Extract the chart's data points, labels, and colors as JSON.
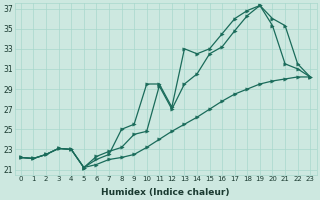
{
  "xlabel": "Humidex (Indice chaleur)",
  "bg_color": "#cde8e0",
  "line_color": "#1a6b5a",
  "xlim": [
    -0.5,
    23.5
  ],
  "ylim": [
    20.5,
    37.5
  ],
  "xticks": [
    0,
    1,
    2,
    3,
    4,
    5,
    6,
    7,
    8,
    9,
    10,
    11,
    12,
    13,
    14,
    15,
    16,
    17,
    18,
    19,
    20,
    21,
    22,
    23
  ],
  "yticks": [
    21,
    23,
    25,
    27,
    29,
    31,
    33,
    35,
    37
  ],
  "line1_x": [
    0,
    1,
    2,
    3,
    4,
    5,
    6,
    7,
    8,
    9,
    10,
    11,
    12,
    13,
    14,
    15,
    16,
    17,
    18,
    19,
    20,
    21,
    22,
    23
  ],
  "line1_y": [
    22.2,
    22.1,
    22.5,
    23.1,
    23.0,
    21.2,
    22.0,
    22.5,
    25.0,
    25.5,
    29.5,
    29.5,
    27.2,
    33.0,
    32.5,
    33.0,
    34.5,
    36.0,
    36.8,
    37.3,
    35.3,
    31.5,
    31.0,
    30.2
  ],
  "line2_x": [
    0,
    1,
    2,
    3,
    4,
    5,
    6,
    7,
    8,
    9,
    10,
    11,
    12,
    13,
    14,
    15,
    16,
    17,
    18,
    19,
    20,
    21,
    22,
    23
  ],
  "line2_y": [
    22.2,
    22.1,
    22.5,
    23.1,
    23.0,
    21.2,
    22.3,
    22.8,
    23.2,
    24.5,
    24.8,
    29.3,
    27.0,
    29.5,
    30.5,
    32.5,
    33.2,
    34.8,
    36.3,
    37.3,
    36.0,
    35.3,
    31.5,
    30.2
  ],
  "line3_x": [
    0,
    1,
    2,
    3,
    4,
    5,
    6,
    7,
    8,
    9,
    10,
    11,
    12,
    13,
    14,
    15,
    16,
    17,
    18,
    19,
    20,
    21,
    22,
    23
  ],
  "line3_y": [
    22.2,
    22.1,
    22.5,
    23.1,
    23.0,
    21.2,
    21.5,
    22.0,
    22.2,
    22.5,
    23.2,
    24.0,
    24.8,
    25.5,
    26.2,
    27.0,
    27.8,
    28.5,
    29.0,
    29.5,
    29.8,
    30.0,
    30.2,
    30.2
  ]
}
